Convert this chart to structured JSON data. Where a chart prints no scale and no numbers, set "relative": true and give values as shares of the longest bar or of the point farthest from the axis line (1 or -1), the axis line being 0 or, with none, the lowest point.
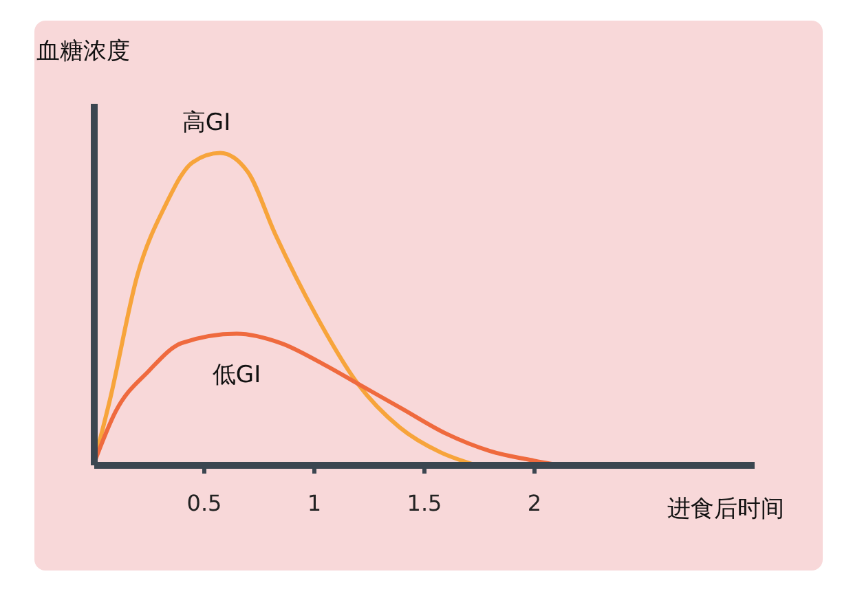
{
  "chart_data": {
    "type": "line",
    "relative": true,
    "xlabel": "进食后时间",
    "ylabel": "血糖浓度",
    "xlim": [
      0,
      3
    ],
    "xticks": [
      0.5,
      1,
      1.5,
      2
    ],
    "grid": false,
    "legend": false,
    "marker": "none",
    "line_style": "solid",
    "series": [
      {
        "name": "高GI",
        "color": "#f7a43b",
        "x": [
          0,
          0.075,
          0.2,
          0.325,
          0.45,
          0.575,
          0.7,
          0.825,
          1.01,
          1.2,
          1.39,
          1.575,
          1.73
        ],
        "values": [
          0,
          0.21,
          0.61,
          0.83,
          0.97,
          1,
          0.94,
          0.74,
          0.48,
          0.26,
          0.12,
          0.04,
          0
        ]
      },
      {
        "name": "低GI",
        "color": "#ef6a3e",
        "x": [
          0,
          0.1,
          0.25,
          0.4,
          0.65,
          0.85,
          1.05,
          1.2,
          1.4,
          1.6,
          1.8,
          2.0,
          2.1
        ],
        "values": [
          0,
          0.17,
          0.3,
          0.39,
          0.42,
          0.39,
          0.32,
          0.26,
          0.18,
          0.1,
          0.044,
          0.013,
          0
        ]
      }
    ]
  }
}
